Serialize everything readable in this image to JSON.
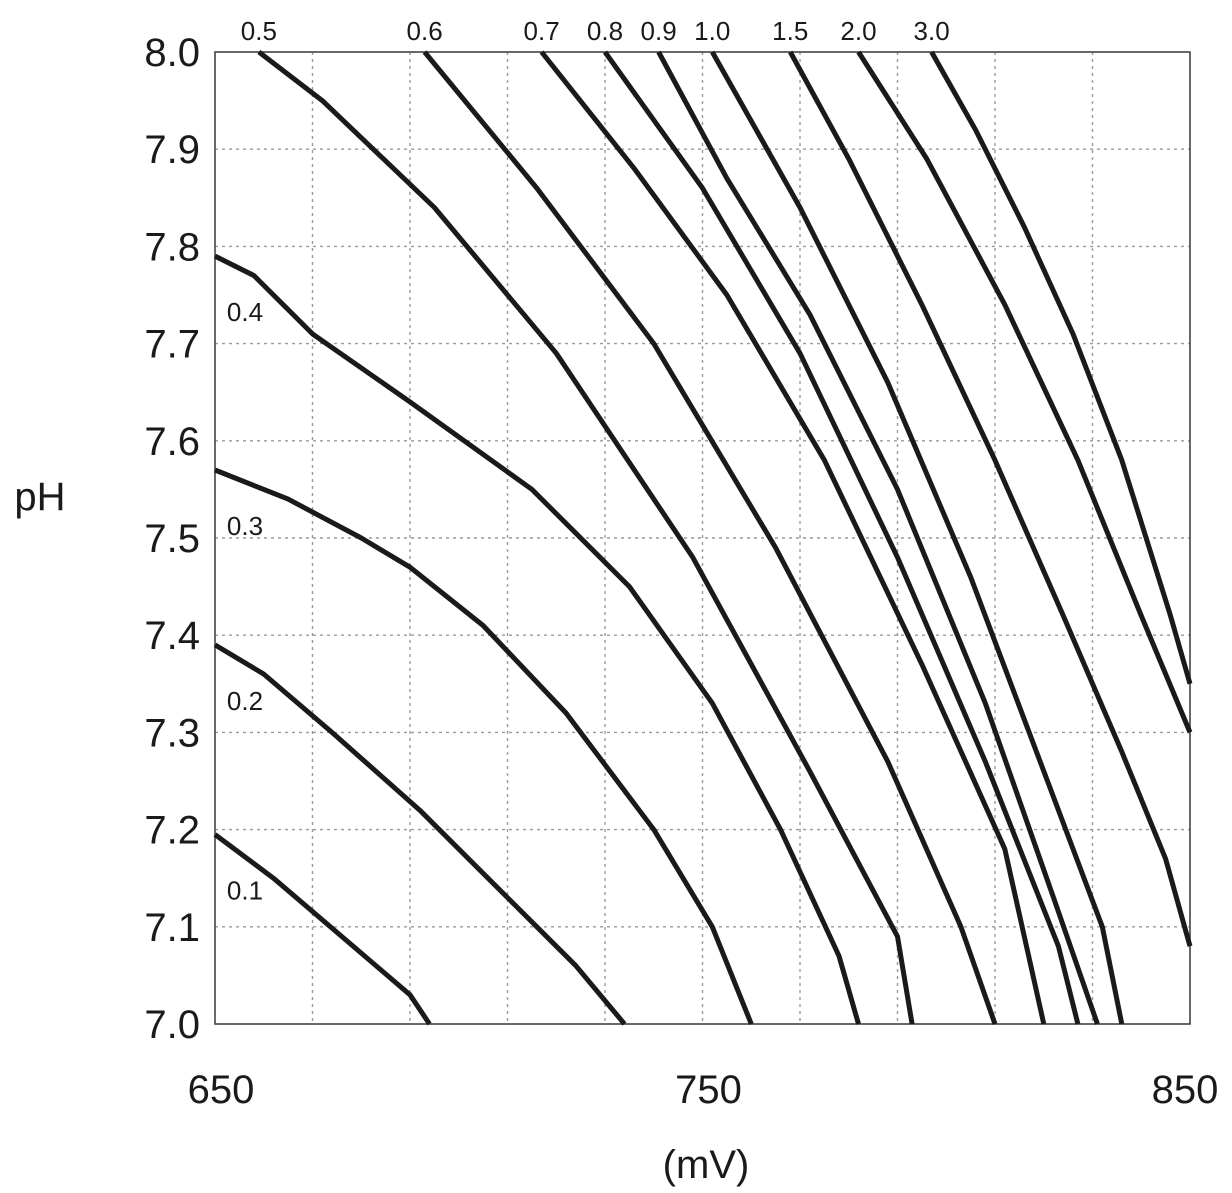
{
  "chart_data": {
    "type": "line",
    "title": "",
    "xlabel": "(mV)",
    "ylabel": "pH",
    "xlim": [
      650,
      850
    ],
    "ylim": [
      7.0,
      8.0
    ],
    "x_ticks": [
      "650",
      "750",
      "850"
    ],
    "y_ticks": [
      "7.0",
      "7.1",
      "7.2",
      "7.3",
      "7.4",
      "7.5",
      "7.6",
      "7.7",
      "7.8",
      "7.9",
      "8.0"
    ],
    "grid": true,
    "series": [
      {
        "name": "0.1",
        "points": [
          [
            650,
            7.195
          ],
          [
            662,
            7.15
          ],
          [
            676,
            7.09
          ],
          [
            690,
            7.03
          ],
          [
            694,
            7.0
          ]
        ]
      },
      {
        "name": "0.2",
        "points": [
          [
            650,
            7.39
          ],
          [
            660,
            7.36
          ],
          [
            674,
            7.3
          ],
          [
            692,
            7.22
          ],
          [
            712,
            7.12
          ],
          [
            724,
            7.06
          ],
          [
            734,
            7.0
          ]
        ]
      },
      {
        "name": "0.3",
        "points": [
          [
            650,
            7.57
          ],
          [
            665,
            7.54
          ],
          [
            680,
            7.5
          ],
          [
            690,
            7.47
          ],
          [
            705,
            7.41
          ],
          [
            722,
            7.32
          ],
          [
            740,
            7.2
          ],
          [
            752,
            7.1
          ],
          [
            760,
            7.0
          ]
        ]
      },
      {
        "name": "0.4",
        "points": [
          [
            650,
            7.79
          ],
          [
            658,
            7.77
          ],
          [
            670,
            7.71
          ],
          [
            690,
            7.64
          ],
          [
            715,
            7.55
          ],
          [
            735,
            7.45
          ],
          [
            752,
            7.33
          ],
          [
            766,
            7.2
          ],
          [
            778,
            7.07
          ],
          [
            782,
            7.0
          ]
        ]
      },
      {
        "name": "0.5",
        "points": [
          [
            659,
            8.0
          ],
          [
            672,
            7.95
          ],
          [
            695,
            7.84
          ],
          [
            720,
            7.69
          ],
          [
            748,
            7.48
          ],
          [
            772,
            7.26
          ],
          [
            790,
            7.09
          ],
          [
            793,
            7.0
          ]
        ]
      },
      {
        "name": "0.6",
        "points": [
          [
            693,
            8.0
          ],
          [
            716,
            7.86
          ],
          [
            740,
            7.7
          ],
          [
            765,
            7.49
          ],
          [
            788,
            7.27
          ],
          [
            803,
            7.1
          ],
          [
            810,
            7.0
          ]
        ]
      },
      {
        "name": "0.7",
        "points": [
          [
            717,
            8.0
          ],
          [
            736,
            7.88
          ],
          [
            755,
            7.75
          ],
          [
            775,
            7.58
          ],
          [
            795,
            7.37
          ],
          [
            812,
            7.18
          ],
          [
            820,
            7.0
          ]
        ]
      },
      {
        "name": "0.8",
        "points": [
          [
            730,
            8.0
          ],
          [
            750,
            7.86
          ],
          [
            770,
            7.69
          ],
          [
            790,
            7.48
          ],
          [
            808,
            7.27
          ],
          [
            823,
            7.08
          ],
          [
            827,
            7.0
          ]
        ]
      },
      {
        "name": "0.9",
        "points": [
          [
            741,
            8.0
          ],
          [
            755,
            7.87
          ],
          [
            772,
            7.73
          ],
          [
            790,
            7.55
          ],
          [
            808,
            7.33
          ],
          [
            822,
            7.13
          ],
          [
            831,
            7.0
          ]
        ]
      },
      {
        "name": "1.0",
        "points": [
          [
            752,
            8.0
          ],
          [
            770,
            7.84
          ],
          [
            788,
            7.66
          ],
          [
            805,
            7.46
          ],
          [
            820,
            7.26
          ],
          [
            832,
            7.1
          ],
          [
            836,
            7.0
          ]
        ]
      },
      {
        "name": "1.5",
        "points": [
          [
            768,
            8.0
          ],
          [
            780,
            7.89
          ],
          [
            795,
            7.74
          ],
          [
            810,
            7.58
          ],
          [
            824,
            7.42
          ],
          [
            836,
            7.28
          ],
          [
            845,
            7.17
          ],
          [
            850,
            7.08
          ]
        ]
      },
      {
        "name": "2.0",
        "points": [
          [
            782,
            8.0
          ],
          [
            796,
            7.89
          ],
          [
            812,
            7.74
          ],
          [
            827,
            7.58
          ],
          [
            840,
            7.42
          ],
          [
            850,
            7.3
          ]
        ]
      },
      {
        "name": "3.0",
        "points": [
          [
            797,
            8.0
          ],
          [
            806,
            7.92
          ],
          [
            816,
            7.82
          ],
          [
            826,
            7.71
          ],
          [
            836,
            7.58
          ],
          [
            846,
            7.42
          ],
          [
            850,
            7.35
          ]
        ]
      }
    ]
  }
}
